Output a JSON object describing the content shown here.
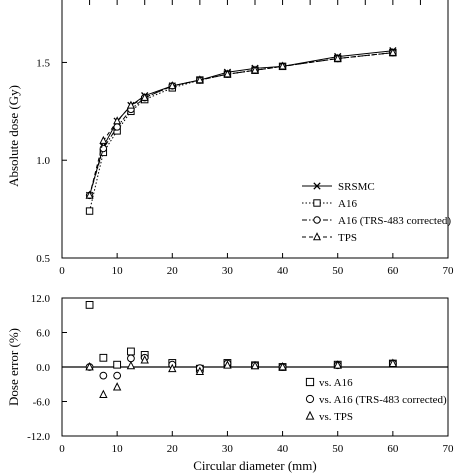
{
  "chart_data": [
    {
      "type": "line",
      "xlabel": "",
      "ylabel": "Absolute dose (Gy)",
      "xlim": [
        0,
        70
      ],
      "ylim": [
        0.5,
        1.85
      ],
      "x_ticks": [
        "0",
        "10",
        "20",
        "30",
        "40",
        "50",
        "60",
        "70"
      ],
      "y_ticks": [
        "0.5",
        "1.0",
        "1.5"
      ],
      "x": [
        5,
        7.5,
        10,
        12.5,
        15,
        20,
        25,
        30,
        35,
        40,
        50,
        60
      ],
      "series": [
        {
          "name": "SRSMC",
          "marker": "x",
          "line": "solid",
          "values": [
            0.82,
            1.07,
            1.2,
            1.28,
            1.33,
            1.38,
            1.41,
            1.45,
            1.47,
            1.48,
            1.53,
            1.56
          ]
        },
        {
          "name": "A16",
          "marker": "square",
          "line": "dotted",
          "values": [
            0.74,
            1.04,
            1.15,
            1.25,
            1.31,
            1.37,
            1.41,
            1.44,
            1.46,
            1.48,
            1.52,
            1.55
          ]
        },
        {
          "name": "A16 (TRS-483 corrected)",
          "marker": "circle",
          "line": "dashdot",
          "values": [
            0.82,
            1.06,
            1.17,
            1.26,
            1.32,
            1.38,
            1.41,
            1.44,
            1.46,
            1.48,
            1.52,
            1.55
          ]
        },
        {
          "name": "TPS",
          "marker": "triangle",
          "line": "dashed",
          "values": [
            0.82,
            1.1,
            1.2,
            1.28,
            1.32,
            1.38,
            1.41,
            1.44,
            1.46,
            1.48,
            1.52,
            1.55
          ]
        }
      ],
      "legend": "bottom-right"
    },
    {
      "type": "scatter",
      "xlabel": "Circular diameter (mm)",
      "ylabel": "Dose error (%)",
      "xlim": [
        0,
        70
      ],
      "ylim": [
        -12,
        12
      ],
      "x_ticks": [
        "0",
        "10",
        "20",
        "30",
        "40",
        "50",
        "60",
        "70"
      ],
      "y_ticks": [
        "12.0",
        "6.0",
        "0.0",
        "-6.0",
        "-12.0"
      ],
      "x": [
        5,
        7.5,
        10,
        12.5,
        15,
        20,
        25,
        30,
        35,
        40,
        50,
        60
      ],
      "series": [
        {
          "name": "vs. A16",
          "marker": "square",
          "values": [
            10.8,
            1.6,
            0.4,
            2.7,
            2.1,
            0.7,
            -0.3,
            0.7,
            0.3,
            0.0,
            0.4,
            0.6
          ]
        },
        {
          "name": "vs. A16 (TRS-483 corrected)",
          "marker": "circle",
          "values": [
            0.0,
            -1.5,
            -1.5,
            1.5,
            1.6,
            0.4,
            -0.2,
            0.6,
            0.3,
            0.0,
            0.3,
            0.6
          ]
        },
        {
          "name": "vs. TPS",
          "marker": "triangle",
          "values": [
            0.0,
            -4.8,
            -3.5,
            0.2,
            1.2,
            -0.3,
            -0.8,
            0.3,
            0.2,
            0.0,
            0.3,
            0.6
          ]
        }
      ],
      "reference_line": 0,
      "legend": "bottom-right"
    }
  ]
}
